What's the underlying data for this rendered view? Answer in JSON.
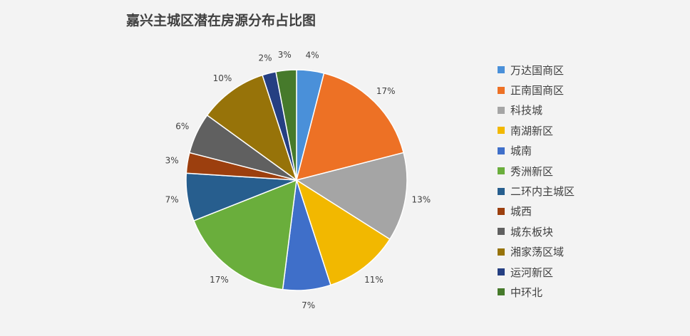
{
  "chart_data": {
    "type": "pie",
    "title": "嘉兴主城区潜在房源分布占比图",
    "categories": [
      "万达国商区",
      "正南国商区",
      "科技城",
      "南湖新区",
      "城南",
      "秀洲新区",
      "二环内主城区",
      "城西",
      "城东板块",
      "湘家荡区域",
      "运河新区",
      "中环北"
    ],
    "values": [
      4,
      17,
      13,
      11,
      7,
      17,
      7,
      3,
      6,
      10,
      2,
      3
    ],
    "labels": [
      "4%",
      "17%",
      "13%",
      "11%",
      "7%",
      "17%",
      "7%",
      "3%",
      "6%",
      "10%",
      "2%",
      "3%"
    ],
    "colors": [
      "#4a90d9",
      "#ed7125",
      "#a5a5a5",
      "#f2b800",
      "#3f6fc9",
      "#6aae3c",
      "#275e8e",
      "#9c3f0e",
      "#606060",
      "#977309",
      "#253f82",
      "#467a2b"
    ],
    "legend_position": "right"
  }
}
